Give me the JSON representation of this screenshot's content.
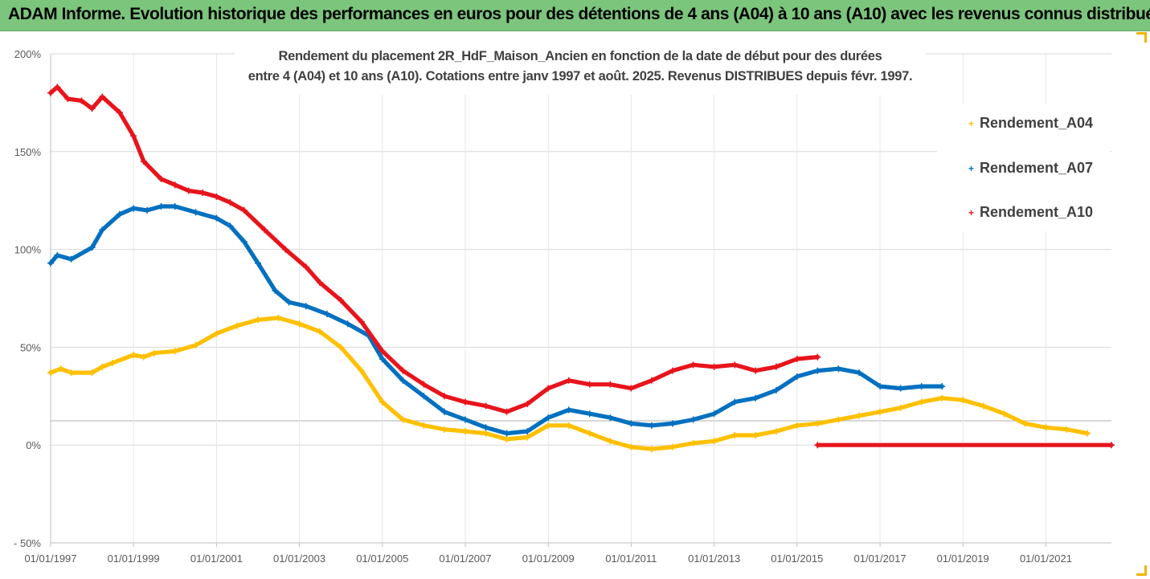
{
  "banner": {
    "title": "ADAM Informe. Evolution historique des performances en euros pour des détentions de 4 ans (A04) à 10 ans (A10) avec les revenus connus distribués"
  },
  "colors": {
    "banner_bg": "#7cc57c",
    "A04": "#ffc000",
    "A07": "#0070c0",
    "A10": "#e8141c",
    "frame_accent": "#f0b400"
  },
  "chart_data": {
    "type": "line",
    "title_line1": "Rendement du placement 2R_HdF_Maison_Ancien en fonction de la date de début pour des durées",
    "title_line2": "entre 4 (A04) et 10 ans (A10). Cotations entre janv 1997 et août. 2025. Revenus DISTRIBUES depuis févr. 1997.",
    "xlabel": "",
    "ylabel": "",
    "x_ticks": [
      "01/01/1997",
      "01/01/1999",
      "01/01/2001",
      "01/01/2003",
      "01/01/2005",
      "01/01/2007",
      "01/01/2009",
      "01/01/2011",
      "01/01/2013",
      "01/01/2015",
      "01/01/2017",
      "01/01/2019",
      "01/01/2021"
    ],
    "y_ticks": [
      "200%",
      "150%",
      "100%",
      "50%",
      "0%",
      "- 50%"
    ],
    "ylim": [
      -50,
      200
    ],
    "xlim": [
      "1997-01-01",
      "2022-08-01"
    ],
    "grid": "horizontal",
    "legend_position": "right",
    "marker": "+",
    "series": [
      {
        "name": "Rendement_A04",
        "color_key": "A04",
        "points": [
          [
            "1997-01-01",
            37
          ],
          [
            "1997-04-01",
            39
          ],
          [
            "1997-07-01",
            37
          ],
          [
            "1998-01-01",
            37
          ],
          [
            "1998-04-01",
            40
          ],
          [
            "1998-07-01",
            42
          ],
          [
            "1999-01-01",
            46
          ],
          [
            "1999-04-01",
            45
          ],
          [
            "1999-07-01",
            47
          ],
          [
            "2000-01-01",
            48
          ],
          [
            "2000-07-01",
            51
          ],
          [
            "2001-01-01",
            57
          ],
          [
            "2001-07-01",
            61
          ],
          [
            "2002-01-01",
            64
          ],
          [
            "2002-07-01",
            65
          ],
          [
            "2003-01-01",
            62
          ],
          [
            "2003-07-01",
            58
          ],
          [
            "2004-01-01",
            50
          ],
          [
            "2004-07-01",
            38
          ],
          [
            "2005-01-01",
            22
          ],
          [
            "2005-07-01",
            13
          ],
          [
            "2006-01-01",
            10
          ],
          [
            "2006-07-01",
            8
          ],
          [
            "2007-01-01",
            7
          ],
          [
            "2007-07-01",
            6
          ],
          [
            "2008-01-01",
            3
          ],
          [
            "2008-07-01",
            4
          ],
          [
            "2009-01-01",
            10
          ],
          [
            "2009-07-01",
            10
          ],
          [
            "2010-01-01",
            6
          ],
          [
            "2010-07-01",
            2
          ],
          [
            "2011-01-01",
            -1
          ],
          [
            "2011-07-01",
            -2
          ],
          [
            "2012-01-01",
            -1
          ],
          [
            "2012-07-01",
            1
          ],
          [
            "2013-01-01",
            2
          ],
          [
            "2013-07-01",
            5
          ],
          [
            "2014-01-01",
            5
          ],
          [
            "2014-07-01",
            7
          ],
          [
            "2015-01-01",
            10
          ],
          [
            "2015-07-01",
            11
          ],
          [
            "2016-01-01",
            13
          ],
          [
            "2016-07-01",
            15
          ],
          [
            "2017-01-01",
            17
          ],
          [
            "2017-07-01",
            19
          ],
          [
            "2018-01-01",
            22
          ],
          [
            "2018-07-01",
            24
          ],
          [
            "2019-01-01",
            23
          ],
          [
            "2019-07-01",
            20
          ],
          [
            "2020-01-01",
            16
          ],
          [
            "2020-07-01",
            11
          ],
          [
            "2021-01-01",
            9
          ],
          [
            "2021-07-01",
            8
          ],
          [
            "2022-01-01",
            6
          ]
        ]
      },
      {
        "name": "Rendement_A07",
        "color_key": "A07",
        "points": [
          [
            "1997-01-01",
            93
          ],
          [
            "1997-03-01",
            97
          ],
          [
            "1997-07-01",
            95
          ],
          [
            "1998-01-01",
            101
          ],
          [
            "1998-04-01",
            110
          ],
          [
            "1998-09-01",
            118
          ],
          [
            "1999-01-01",
            121
          ],
          [
            "1999-05-01",
            120
          ],
          [
            "1999-09-01",
            122
          ],
          [
            "2000-01-01",
            122
          ],
          [
            "2000-07-01",
            119
          ],
          [
            "2001-01-01",
            116
          ],
          [
            "2001-05-01",
            112
          ],
          [
            "2001-09-01",
            104
          ],
          [
            "2002-01-01",
            93
          ],
          [
            "2002-06-01",
            79
          ],
          [
            "2002-10-01",
            73
          ],
          [
            "2003-03-01",
            71
          ],
          [
            "2003-09-01",
            67
          ],
          [
            "2004-03-01",
            62
          ],
          [
            "2004-09-01",
            56
          ],
          [
            "2005-01-01",
            44
          ],
          [
            "2005-07-01",
            33
          ],
          [
            "2006-01-01",
            25
          ],
          [
            "2006-07-01",
            17
          ],
          [
            "2007-01-01",
            13
          ],
          [
            "2007-07-01",
            9
          ],
          [
            "2008-01-01",
            6
          ],
          [
            "2008-07-01",
            7
          ],
          [
            "2009-01-01",
            14
          ],
          [
            "2009-07-01",
            18
          ],
          [
            "2010-01-01",
            16
          ],
          [
            "2010-07-01",
            14
          ],
          [
            "2011-01-01",
            11
          ],
          [
            "2011-07-01",
            10
          ],
          [
            "2012-01-01",
            11
          ],
          [
            "2012-07-01",
            13
          ],
          [
            "2013-01-01",
            16
          ],
          [
            "2013-07-01",
            22
          ],
          [
            "2014-01-01",
            24
          ],
          [
            "2014-07-01",
            28
          ],
          [
            "2015-01-01",
            35
          ],
          [
            "2015-07-01",
            38
          ],
          [
            "2016-01-01",
            39
          ],
          [
            "2016-07-01",
            37
          ],
          [
            "2017-01-01",
            30
          ],
          [
            "2017-07-01",
            29
          ],
          [
            "2018-01-01",
            30
          ],
          [
            "2018-07-01",
            30
          ]
        ]
      },
      {
        "name": "Rendement_A10",
        "color_key": "A10",
        "points": [
          [
            "1997-01-01",
            180
          ],
          [
            "1997-03-01",
            183
          ],
          [
            "1997-06-01",
            177
          ],
          [
            "1997-10-01",
            176
          ],
          [
            "1998-01-01",
            172
          ],
          [
            "1998-04-01",
            178
          ],
          [
            "1998-09-01",
            170
          ],
          [
            "1999-01-01",
            158
          ],
          [
            "1999-04-01",
            145
          ],
          [
            "1999-09-01",
            136
          ],
          [
            "2000-01-01",
            133
          ],
          [
            "2000-05-01",
            130
          ],
          [
            "2000-09-01",
            129
          ],
          [
            "2001-01-01",
            127
          ],
          [
            "2001-05-01",
            124
          ],
          [
            "2001-09-01",
            120
          ],
          [
            "2002-03-01",
            110
          ],
          [
            "2002-09-01",
            100
          ],
          [
            "2003-03-01",
            91
          ],
          [
            "2003-07-01",
            83
          ],
          [
            "2004-01-01",
            74
          ],
          [
            "2004-07-01",
            63
          ],
          [
            "2005-01-01",
            48
          ],
          [
            "2005-07-01",
            38
          ],
          [
            "2006-01-01",
            31
          ],
          [
            "2006-07-01",
            25
          ],
          [
            "2007-01-01",
            22
          ],
          [
            "2007-07-01",
            20
          ],
          [
            "2008-01-01",
            17
          ],
          [
            "2008-07-01",
            21
          ],
          [
            "2009-01-01",
            29
          ],
          [
            "2009-07-01",
            33
          ],
          [
            "2010-01-01",
            31
          ],
          [
            "2010-07-01",
            31
          ],
          [
            "2011-01-01",
            29
          ],
          [
            "2011-07-01",
            33
          ],
          [
            "2012-01-01",
            38
          ],
          [
            "2012-07-01",
            41
          ],
          [
            "2013-01-01",
            40
          ],
          [
            "2013-07-01",
            41
          ],
          [
            "2014-01-01",
            38
          ],
          [
            "2014-07-01",
            40
          ],
          [
            "2015-01-01",
            44
          ],
          [
            "2015-07-01",
            45
          ]
        ]
      },
      {
        "name": "",
        "color_key": "A10",
        "points": [
          [
            "2015-07-01",
            0
          ],
          [
            "2022-08-01",
            0
          ]
        ]
      }
    ]
  }
}
